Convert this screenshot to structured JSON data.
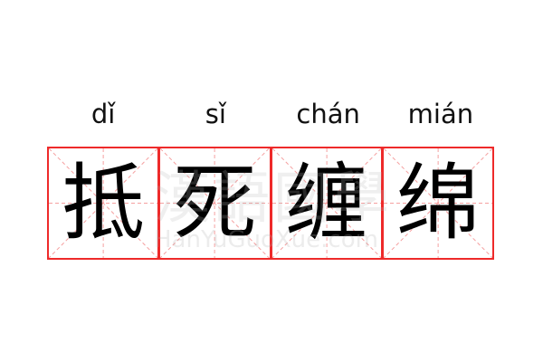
{
  "pinyin": [
    "dǐ",
    "sǐ",
    "chán",
    "mián"
  ],
  "characters": [
    "抵",
    "死",
    "缠",
    "绵"
  ],
  "watermark": {
    "text": "漢語國學",
    "url": "HanYuGuoXue.com"
  },
  "colors": {
    "grid_border": "#ee2a2a",
    "grid_guides": "#f5a0a0"
  }
}
